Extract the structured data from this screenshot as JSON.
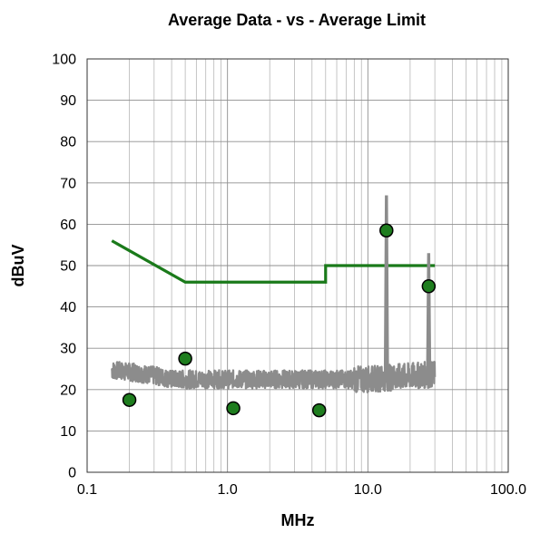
{
  "chart_data": {
    "type": "line",
    "title": "Average Data - vs - Average Limit",
    "xlabel": "MHz",
    "ylabel": "dBuV",
    "x_scale": "log",
    "xlim": [
      0.1,
      100.0
    ],
    "ylim": [
      0,
      100
    ],
    "x_ticks": [
      0.1,
      1.0,
      10.0,
      100.0
    ],
    "x_tick_labels": [
      "0.1",
      "1.0",
      "10.0",
      "100.0"
    ],
    "y_ticks": [
      0,
      10,
      20,
      30,
      40,
      50,
      60,
      70,
      80,
      90,
      100
    ],
    "y_tick_labels": [
      "0",
      "10",
      "20",
      "30",
      "40",
      "50",
      "60",
      "70",
      "80",
      "90",
      "100"
    ],
    "grid": true,
    "legend": "none",
    "colors": {
      "trace": "#8c8c8c",
      "limit": "#1a7a1a",
      "marker_fill": "#1e7d1e",
      "marker_edge": "#000000"
    },
    "series": [
      {
        "kind": "limit",
        "x": [
          0.15,
          0.5,
          5.0,
          5.0,
          30.0
        ],
        "y": [
          56,
          46,
          46,
          50,
          50
        ]
      },
      {
        "kind": "trace",
        "x_range": [
          0.15,
          30.0
        ],
        "baseline": 22.5,
        "spikes": [
          {
            "x": 13.56,
            "y": 67
          },
          {
            "x": 27.12,
            "y": 53
          }
        ]
      },
      {
        "kind": "points",
        "x": [
          0.2,
          0.5,
          1.1,
          4.5,
          13.56,
          27.12
        ],
        "y": [
          17.5,
          27.5,
          15.5,
          15.0,
          58.5,
          45.0
        ]
      }
    ]
  }
}
